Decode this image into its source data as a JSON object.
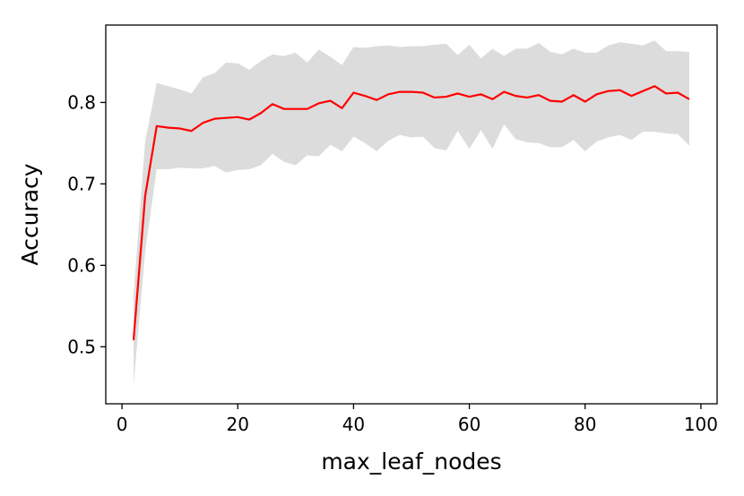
{
  "chart_data": {
    "type": "line",
    "title": "",
    "xlabel": "max_leaf_nodes",
    "ylabel": "Accuracy",
    "xlim": [
      -2.8,
      102.8
    ],
    "ylim": [
      0.43,
      0.895
    ],
    "xticks": [
      0,
      20,
      40,
      60,
      80,
      100
    ],
    "yticks": [
      0.5,
      0.6,
      0.7,
      0.8
    ],
    "xtick_labels": [
      "0",
      "20",
      "40",
      "60",
      "80",
      "100"
    ],
    "ytick_labels": [
      "0.5",
      "0.6",
      "0.7",
      "0.8"
    ],
    "grid": false,
    "legend": "none",
    "series": [
      {
        "color": "#ff0000",
        "band_color": "#dcdcdc",
        "x": [
          2,
          4,
          6,
          8,
          10,
          12,
          14,
          16,
          18,
          20,
          22,
          24,
          26,
          28,
          30,
          32,
          34,
          36,
          38,
          40,
          42,
          44,
          46,
          48,
          50,
          52,
          54,
          56,
          58,
          60,
          62,
          64,
          66,
          68,
          70,
          72,
          74,
          76,
          78,
          80,
          82,
          84,
          86,
          88,
          90,
          92,
          94,
          96,
          98
        ],
        "y": [
          0.508,
          0.685,
          0.771,
          0.769,
          0.768,
          0.765,
          0.775,
          0.78,
          0.781,
          0.782,
          0.779,
          0.787,
          0.798,
          0.792,
          0.792,
          0.792,
          0.799,
          0.802,
          0.793,
          0.812,
          0.808,
          0.803,
          0.81,
          0.813,
          0.813,
          0.812,
          0.806,
          0.807,
          0.811,
          0.807,
          0.81,
          0.804,
          0.813,
          0.808,
          0.806,
          0.809,
          0.802,
          0.801,
          0.809,
          0.801,
          0.81,
          0.814,
          0.815,
          0.808,
          0.814,
          0.82,
          0.811,
          0.812,
          0.804
        ],
        "upper": [
          0.563,
          0.752,
          0.824,
          0.82,
          0.816,
          0.811,
          0.831,
          0.836,
          0.849,
          0.848,
          0.84,
          0.851,
          0.859,
          0.857,
          0.861,
          0.849,
          0.865,
          0.856,
          0.846,
          0.868,
          0.867,
          0.869,
          0.87,
          0.868,
          0.869,
          0.869,
          0.871,
          0.872,
          0.858,
          0.871,
          0.854,
          0.866,
          0.857,
          0.866,
          0.866,
          0.873,
          0.862,
          0.859,
          0.866,
          0.861,
          0.861,
          0.87,
          0.874,
          0.872,
          0.87,
          0.876,
          0.863,
          0.863,
          0.862
        ],
        "lower": [
          0.453,
          0.617,
          0.718,
          0.718,
          0.72,
          0.719,
          0.719,
          0.722,
          0.714,
          0.717,
          0.718,
          0.723,
          0.737,
          0.727,
          0.723,
          0.735,
          0.734,
          0.748,
          0.74,
          0.758,
          0.75,
          0.74,
          0.753,
          0.76,
          0.757,
          0.758,
          0.744,
          0.741,
          0.765,
          0.743,
          0.766,
          0.743,
          0.773,
          0.755,
          0.751,
          0.75,
          0.745,
          0.745,
          0.754,
          0.74,
          0.752,
          0.757,
          0.76,
          0.754,
          0.764,
          0.764,
          0.762,
          0.761,
          0.747
        ]
      }
    ]
  }
}
